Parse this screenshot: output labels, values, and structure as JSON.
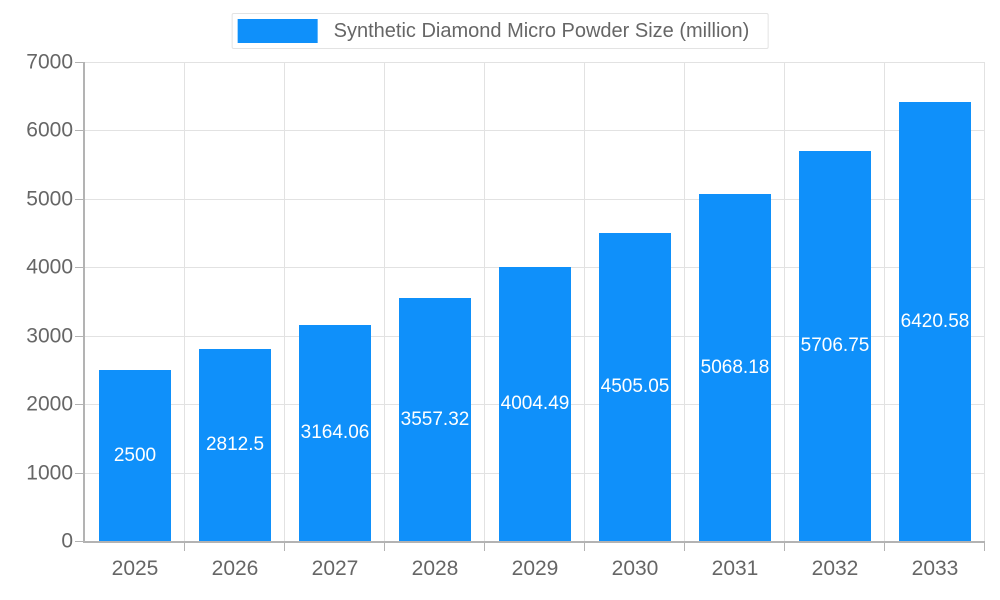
{
  "chart_data": {
    "type": "bar",
    "title": "Synthetic Diamond Micro Powder Size (million)",
    "categories": [
      "2025",
      "2026",
      "2027",
      "2028",
      "2029",
      "2030",
      "2031",
      "2032",
      "2033"
    ],
    "values": [
      2500,
      2812.5,
      3164.06,
      3557.32,
      4004.49,
      4505.05,
      5068.18,
      5706.75,
      6420.58
    ],
    "value_labels": [
      "2500",
      "2812.5",
      "3164.06",
      "3557.32",
      "4004.49",
      "4505.05",
      "5068.18",
      "5706.75",
      "6420.58"
    ],
    "ylim": [
      0,
      7000
    ],
    "ytick_step": 1000,
    "ytick_labels": [
      "0",
      "1000",
      "2000",
      "3000",
      "4000",
      "5000",
      "6000",
      "7000"
    ],
    "xlabel": "",
    "ylabel": "",
    "legend_position": "top",
    "grid": "on",
    "colors": {
      "bar": "#0f90fa",
      "bar_label": "#ffffff",
      "tick_text": "#666666",
      "grid_line": "#e2e2e2",
      "axis_line": "#b3b3b3",
      "legend_text": "#666666",
      "legend_border": "#e3e3e3",
      "background": "#ffffff"
    }
  }
}
